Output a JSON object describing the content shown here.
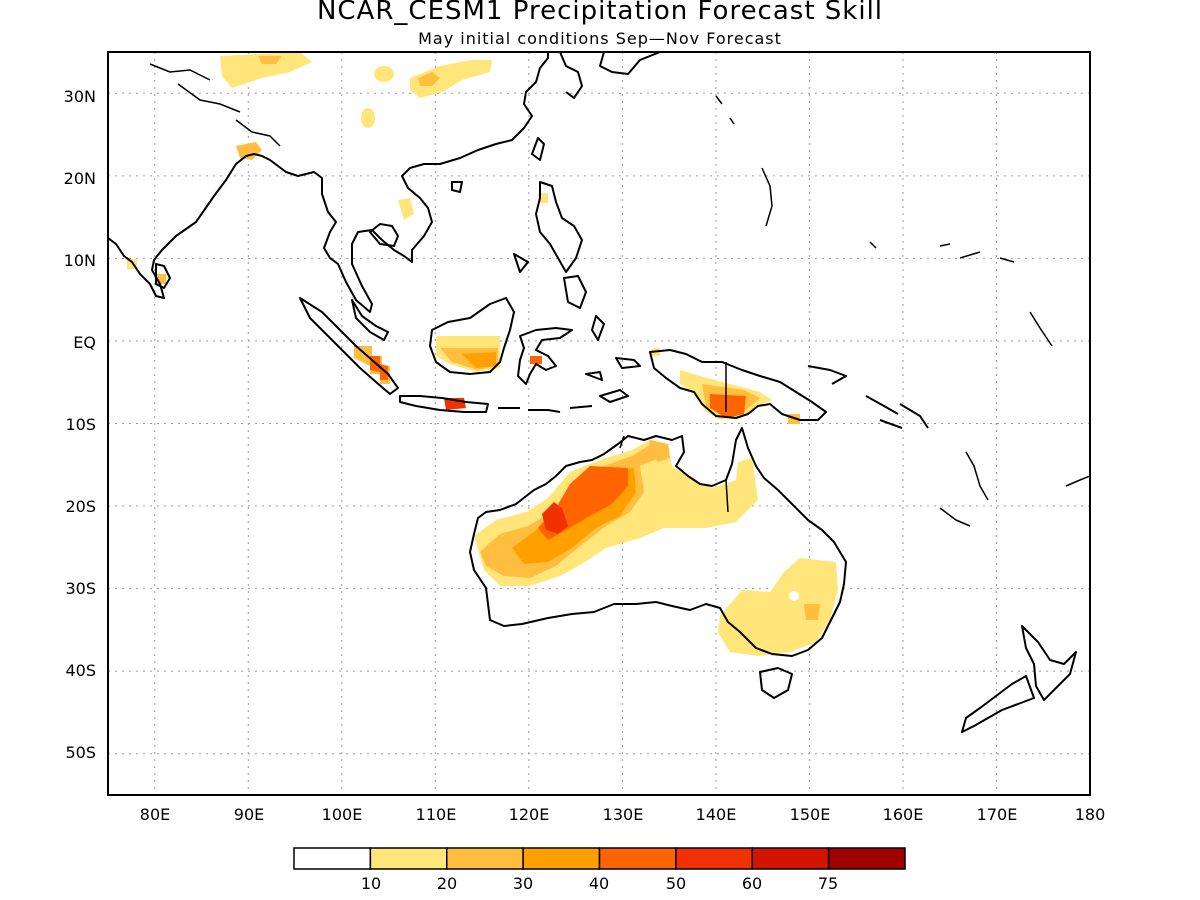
{
  "title": "NCAR_CESM1 Precipitation Forecast Skill",
  "subtitle": "May initial conditions  Sep—Nov Forecast",
  "map": {
    "projection": "latitude-longitude",
    "lon_range": [
      75,
      180
    ],
    "lat_range": [
      -55,
      35
    ],
    "grid": "dotted",
    "lat_ticks": [
      "30N",
      "20N",
      "10N",
      "EQ",
      "10S",
      "20S",
      "30S",
      "40S",
      "50S"
    ],
    "lon_ticks": [
      "80E",
      "90E",
      "100E",
      "110E",
      "120E",
      "130E",
      "140E",
      "150E",
      "160E",
      "170E",
      "180"
    ]
  },
  "colorbar": {
    "labels": [
      "10",
      "20",
      "30",
      "40",
      "50",
      "60",
      "75"
    ],
    "colors": [
      "#ffffff",
      "#ffe57a",
      "#ffbe40",
      "#ffa000",
      "#ff6400",
      "#f03200",
      "#d21400",
      "#a00000"
    ]
  },
  "icons": {
    "land": "coastline-outline",
    "skill": "shaded-contours"
  }
}
